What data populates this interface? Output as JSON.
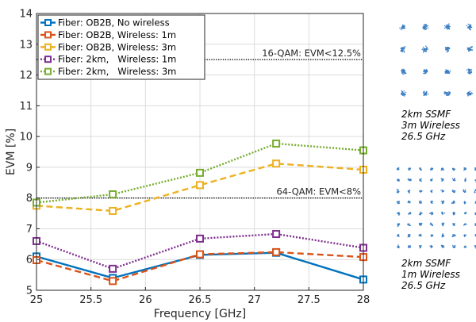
{
  "chart_data": {
    "type": "line",
    "x": [
      25,
      25.7,
      26.5,
      27.2,
      28
    ],
    "xlabel": "Frequency [GHz]",
    "ylabel": "EVM [%]",
    "xlim": [
      25,
      28
    ],
    "ylim": [
      5,
      14
    ],
    "xticks": [
      "25",
      "25.5",
      "26",
      "26.5",
      "27",
      "27.5",
      "28"
    ],
    "yticks": [
      "5",
      "6",
      "7",
      "8",
      "9",
      "10",
      "11",
      "12",
      "13",
      "14"
    ],
    "grid": true,
    "legend_position": "top-left",
    "series": [
      {
        "name": "Fiber: OB2B, No wireless",
        "color": "#0072BD",
        "style": "solid",
        "values": [
          6.1,
          5.4,
          6.15,
          6.22,
          5.35
        ]
      },
      {
        "name": "Fiber: OB2B, Wireless: 1m",
        "color": "#D95319",
        "style": "dashed",
        "values": [
          5.98,
          5.3,
          6.17,
          6.24,
          6.08
        ]
      },
      {
        "name": "Fiber: OB2B, Wireless: 3m",
        "color": "#EDB120",
        "style": "dashed",
        "values": [
          7.75,
          7.58,
          8.42,
          9.12,
          8.92
        ]
      },
      {
        "name": "Fiber: 2km,   Wireless: 1m",
        "color": "#7E2F8E",
        "style": "dotted",
        "values": [
          6.6,
          5.7,
          6.68,
          6.83,
          6.38
        ]
      },
      {
        "name": "Fiber: 2km,   Wireless: 3m",
        "color": "#77AC30",
        "style": "dotted",
        "values": [
          7.85,
          8.12,
          8.82,
          9.77,
          9.55
        ]
      }
    ],
    "thresholds": [
      {
        "value": 12.5,
        "label": "16-QAM: EVM<12.5%"
      },
      {
        "value": 8,
        "label": "64-QAM: EVM<8%"
      }
    ]
  },
  "constellations": [
    {
      "qam": 16,
      "color": "#3b7fc4",
      "caption": [
        "2km SSMF",
        "3m Wireless",
        "26.5 GHz"
      ]
    },
    {
      "qam": 64,
      "color": "#3b7fc4",
      "caption": [
        "2km SSMF",
        "1m Wireless",
        "26.5 GHz"
      ]
    }
  ]
}
